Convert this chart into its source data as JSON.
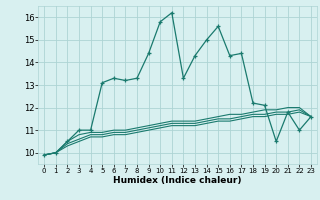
{
  "xlabel": "Humidex (Indice chaleur)",
  "x_data": [
    0,
    1,
    2,
    3,
    4,
    5,
    6,
    7,
    8,
    9,
    10,
    11,
    12,
    13,
    14,
    15,
    16,
    17,
    18,
    19,
    20,
    21,
    22,
    23
  ],
  "main_line": [
    9.9,
    10.0,
    10.5,
    11.0,
    11.0,
    13.1,
    13.3,
    13.2,
    13.3,
    14.4,
    15.8,
    16.2,
    13.3,
    14.3,
    15.0,
    15.6,
    14.3,
    14.4,
    12.2,
    12.1,
    10.5,
    11.8,
    11.0,
    11.6
  ],
  "line2": [
    9.9,
    10.0,
    10.5,
    10.8,
    10.9,
    10.9,
    11.0,
    11.0,
    11.1,
    11.2,
    11.3,
    11.4,
    11.4,
    11.4,
    11.5,
    11.6,
    11.7,
    11.7,
    11.8,
    11.9,
    11.9,
    12.0,
    12.0,
    11.6
  ],
  "line3": [
    9.9,
    10.0,
    10.4,
    10.6,
    10.8,
    10.8,
    10.9,
    10.9,
    11.0,
    11.1,
    11.2,
    11.3,
    11.3,
    11.3,
    11.4,
    11.5,
    11.5,
    11.6,
    11.7,
    11.7,
    11.8,
    11.8,
    11.9,
    11.6
  ],
  "line4": [
    9.9,
    10.0,
    10.3,
    10.5,
    10.7,
    10.7,
    10.8,
    10.8,
    10.9,
    11.0,
    11.1,
    11.2,
    11.2,
    11.2,
    11.3,
    11.4,
    11.4,
    11.5,
    11.6,
    11.6,
    11.7,
    11.7,
    11.8,
    11.6
  ],
  "line_color": "#1a7a6e",
  "bg_color": "#d8f0f0",
  "grid_color": "#aed4d4",
  "xlim": [
    -0.5,
    23.5
  ],
  "ylim": [
    9.5,
    16.5
  ],
  "yticks": [
    10,
    11,
    12,
    13,
    14,
    15,
    16
  ],
  "xticks": [
    0,
    1,
    2,
    3,
    4,
    5,
    6,
    7,
    8,
    9,
    10,
    11,
    12,
    13,
    14,
    15,
    16,
    17,
    18,
    19,
    20,
    21,
    22,
    23
  ]
}
